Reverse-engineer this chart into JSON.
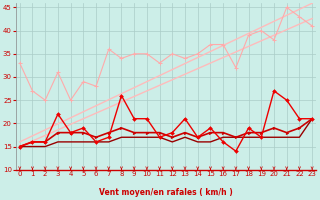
{
  "x": [
    0,
    1,
    2,
    3,
    4,
    5,
    6,
    7,
    8,
    9,
    10,
    11,
    12,
    13,
    14,
    15,
    16,
    17,
    18,
    19,
    20,
    21,
    22,
    23
  ],
  "upper_zigzag": [
    33,
    27,
    25,
    31,
    25,
    29,
    28,
    36,
    34,
    35,
    35,
    33,
    35,
    34,
    35,
    37,
    37,
    32,
    39,
    40,
    38,
    45,
    43,
    41
  ],
  "trend1": [
    16,
    17.3,
    18.6,
    19.9,
    21.2,
    22.5,
    23.8,
    25.1,
    26.4,
    27.7,
    29.0,
    30.3,
    31.6,
    32.9,
    34.2,
    35.5,
    36.8,
    38.1,
    39.4,
    40.7,
    42.0,
    43.3,
    44.6,
    45.9
  ],
  "trend2": [
    15,
    16.2,
    17.4,
    18.6,
    19.8,
    21.0,
    22.2,
    23.4,
    24.6,
    25.8,
    27.0,
    28.2,
    29.4,
    30.6,
    31.8,
    33.0,
    34.2,
    35.4,
    36.6,
    37.8,
    39.0,
    40.2,
    41.4,
    42.6
  ],
  "lower_zigzag": [
    15,
    16,
    16,
    22,
    18,
    19,
    16,
    17,
    26,
    21,
    21,
    17,
    18,
    21,
    17,
    19,
    16,
    14,
    19,
    17,
    27,
    25,
    21,
    21
  ],
  "red_line1": [
    15,
    16,
    16,
    18,
    18,
    18,
    17,
    18,
    19,
    18,
    18,
    18,
    17,
    18,
    17,
    18,
    18,
    17,
    18,
    18,
    19,
    18,
    19,
    21
  ],
  "red_line2": [
    15,
    15,
    15,
    16,
    16,
    16,
    16,
    16,
    17,
    17,
    17,
    17,
    16,
    17,
    16,
    16,
    17,
    17,
    17,
    17,
    17,
    17,
    17,
    21
  ],
  "bg_color": "#cceee8",
  "grid_color": "#aaccc8",
  "upper_color": "#ffaaaa",
  "trend_color": "#ffbbbb",
  "lower_zigzag_color": "#ee0000",
  "red_line1_color": "#cc0000",
  "red_line2_color": "#990000",
  "xlabel": "Vent moyen/en rafales ( km/h )",
  "ylim": [
    10,
    46
  ],
  "xlim": [
    -0.3,
    23.3
  ],
  "yticks": [
    10,
    15,
    20,
    25,
    30,
    35,
    40,
    45
  ],
  "xticks": [
    0,
    1,
    2,
    3,
    4,
    5,
    6,
    7,
    8,
    9,
    10,
    11,
    12,
    13,
    14,
    15,
    16,
    17,
    18,
    19,
    20,
    21,
    22,
    23
  ]
}
